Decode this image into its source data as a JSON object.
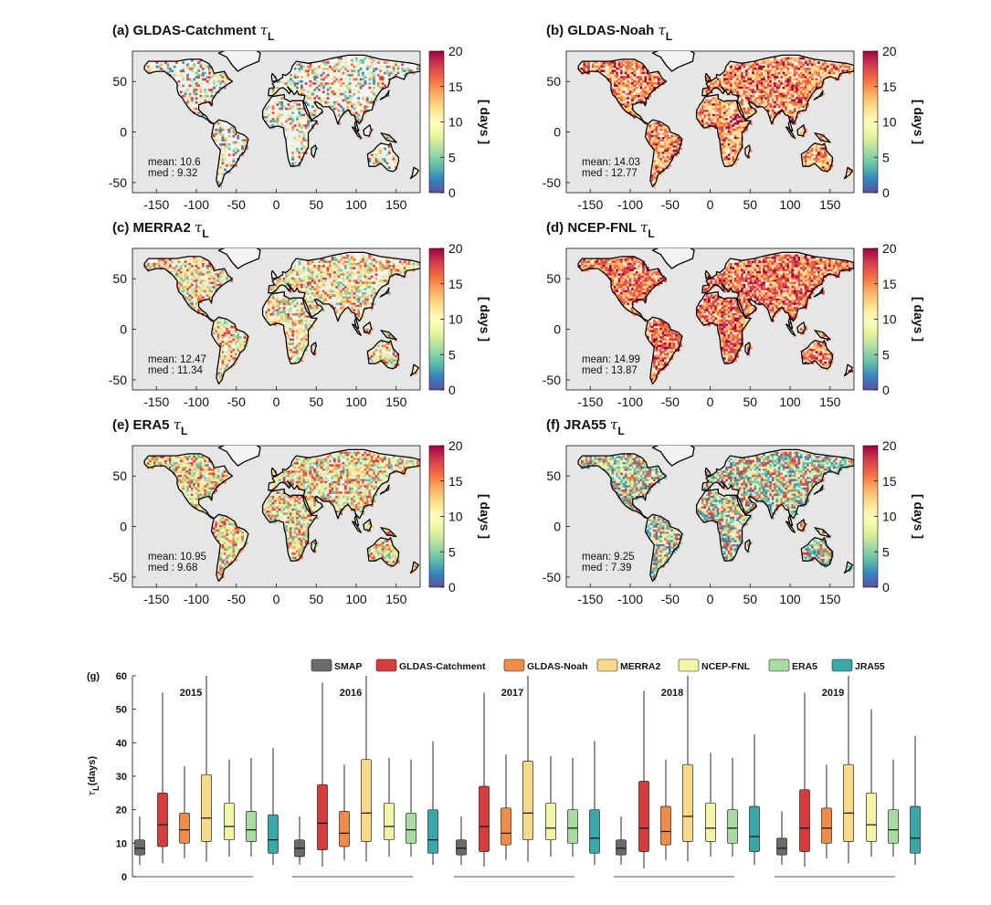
{
  "maps": [
    {
      "id": "a",
      "title": "(a) GLDAS-Catchment",
      "tau": "τ",
      "sub": "L",
      "mean": "mean:  10.6",
      "med": "med : 9.32",
      "density": 0.35,
      "palette": [
        "#3e8fb0",
        "#66c2a5",
        "#abdda4",
        "#e6f598",
        "#fee08b",
        "#fdae61",
        "#f46d43",
        "#d53e4f"
      ]
    },
    {
      "id": "b",
      "title": "(b) GLDAS-Noah",
      "tau": "τ",
      "sub": "L",
      "mean": "mean:  14.03",
      "med": "med : 12.77",
      "density": 0.8,
      "palette": [
        "#fee08b",
        "#fdae61",
        "#f46d43",
        "#d53e4f",
        "#9e0142",
        "#f46d43",
        "#fdae61",
        "#fee08b"
      ]
    },
    {
      "id": "c",
      "title": "(c) MERRA2",
      "tau": "τ",
      "sub": "L",
      "mean": "mean:  12.47",
      "med": "med : 11.34",
      "density": 0.6,
      "palette": [
        "#abdda4",
        "#e6f598",
        "#fee08b",
        "#fdae61",
        "#f46d43",
        "#d53e4f",
        "#66c2a5",
        "#fee08b"
      ]
    },
    {
      "id": "d",
      "title": "(d) NCEP-FNL",
      "tau": "τ",
      "sub": "L",
      "mean": "mean:  14.99",
      "med": "med : 13.87",
      "density": 0.85,
      "palette": [
        "#fdae61",
        "#f46d43",
        "#d53e4f",
        "#9e0142",
        "#fee08b",
        "#f46d43",
        "#d53e4f",
        "#fdae61"
      ]
    },
    {
      "id": "e",
      "title": "(e) ERA5",
      "tau": "τ",
      "sub": "L",
      "mean": "mean:  10.95",
      "med": "med : 9.68",
      "density": 0.75,
      "palette": [
        "#abdda4",
        "#e6f598",
        "#fee08b",
        "#fdae61",
        "#66c2a5",
        "#d53e4f",
        "#f46d43",
        "#e6f598"
      ]
    },
    {
      "id": "f",
      "title": "(f) JRA55",
      "tau": "τ",
      "sub": "L",
      "mean": "mean:  9.25",
      "med": "med : 7.39",
      "density": 0.8,
      "palette": [
        "#66c2a5",
        "#3288bd",
        "#abdda4",
        "#e6f598",
        "#fee08b",
        "#f46d43",
        "#d53e4f",
        "#66c2a5"
      ]
    }
  ],
  "map_axes": {
    "x_ticks": [
      "-150",
      "-100",
      "-50",
      "0",
      "50",
      "100",
      "150"
    ],
    "y_ticks": [
      "50",
      "0",
      "-50"
    ],
    "colorbar_ticks": [
      "20",
      "15",
      "10",
      "5",
      "0"
    ],
    "colorbar_label": "[ days ]",
    "colorbar_range": [
      0,
      20
    ]
  },
  "colors": {
    "ocean": "#e6e6e6",
    "colorbar": [
      "#9e0142",
      "#d53e4f",
      "#f46d43",
      "#fdae61",
      "#fee08b",
      "#ffffbf",
      "#e6f598",
      "#abdda4",
      "#66c2a5",
      "#3288bd",
      "#5e4fa2"
    ]
  },
  "chart_data": {
    "type": "box",
    "panel_label": "(g)",
    "ylabel": "τ",
    "ylabel_sub": "L",
    "ylabel_unit": "(days)",
    "ylim": [
      0,
      60
    ],
    "y_ticks": [
      "60",
      "50",
      "40",
      "30",
      "20",
      "10",
      "0"
    ],
    "legend": [
      {
        "name": "SMAP",
        "color": "#6b6b6b"
      },
      {
        "name": "GLDAS-Catchment",
        "color": "#d73c3c"
      },
      {
        "name": "GLDAS-Noah",
        "color": "#f08c4a"
      },
      {
        "name": "MERRA2",
        "color": "#fad98a"
      },
      {
        "name": "NCEP-FNL",
        "color": "#f2f5a6"
      },
      {
        "name": "ERA5",
        "color": "#a8dba0"
      },
      {
        "name": "JRA55",
        "color": "#3aa8a8"
      }
    ],
    "groups": [
      {
        "year": "2015",
        "boxes": [
          {
            "min": 3.5,
            "q1": 6.5,
            "med": 8.5,
            "q3": 11,
            "max": 18
          },
          {
            "min": 4,
            "q1": 9,
            "med": 15.5,
            "q3": 25,
            "max": 55
          },
          {
            "min": 5.5,
            "q1": 10,
            "med": 14,
            "q3": 19,
            "max": 33
          },
          {
            "min": 4.5,
            "q1": 10.5,
            "med": 17.5,
            "q3": 30.5,
            "max": 60
          },
          {
            "min": 6,
            "q1": 11,
            "med": 15,
            "q3": 22,
            "max": 35
          },
          {
            "min": 6,
            "q1": 10.5,
            "med": 14,
            "q3": 19.5,
            "max": 35.5
          },
          {
            "min": 3.5,
            "q1": 7,
            "med": 11,
            "q3": 18.5,
            "max": 38.5
          }
        ]
      },
      {
        "year": "2016",
        "boxes": [
          {
            "min": 3.5,
            "q1": 6,
            "med": 8.5,
            "q3": 11,
            "max": 18
          },
          {
            "min": 3,
            "q1": 8,
            "med": 16,
            "q3": 27.5,
            "max": 58
          },
          {
            "min": 5,
            "q1": 9,
            "med": 13,
            "q3": 19.5,
            "max": 33.5
          },
          {
            "min": 4.5,
            "q1": 10.5,
            "med": 19,
            "q3": 35,
            "max": 60
          },
          {
            "min": 6,
            "q1": 11,
            "med": 15,
            "q3": 22,
            "max": 35.5
          },
          {
            "min": 6,
            "q1": 10,
            "med": 14,
            "q3": 19,
            "max": 35
          },
          {
            "min": 3.5,
            "q1": 7,
            "med": 11,
            "q3": 20,
            "max": 40.5
          }
        ]
      },
      {
        "year": "2017",
        "boxes": [
          {
            "min": 3.5,
            "q1": 6.5,
            "med": 8.5,
            "q3": 11,
            "max": 18
          },
          {
            "min": 3,
            "q1": 7.5,
            "med": 15,
            "q3": 27,
            "max": 55
          },
          {
            "min": 5,
            "q1": 9.5,
            "med": 13,
            "q3": 20.5,
            "max": 36.5
          },
          {
            "min": 4.5,
            "q1": 11,
            "med": 19,
            "q3": 34.5,
            "max": 60
          },
          {
            "min": 6,
            "q1": 11,
            "med": 14.5,
            "q3": 22,
            "max": 36
          },
          {
            "min": 6,
            "q1": 10,
            "med": 14.5,
            "q3": 20,
            "max": 35.5
          },
          {
            "min": 3.5,
            "q1": 7,
            "med": 11.5,
            "q3": 20,
            "max": 40.5
          }
        ]
      },
      {
        "year": "2018",
        "boxes": [
          {
            "min": 3.5,
            "q1": 6.5,
            "med": 8.5,
            "q3": 11,
            "max": 18
          },
          {
            "min": 2.5,
            "q1": 7.5,
            "med": 14.5,
            "q3": 28.5,
            "max": 55.5
          },
          {
            "min": 5,
            "q1": 9.5,
            "med": 13.5,
            "q3": 21,
            "max": 35
          },
          {
            "min": 4.5,
            "q1": 10.5,
            "med": 18,
            "q3": 33.5,
            "max": 60
          },
          {
            "min": 6,
            "q1": 10.5,
            "med": 14.5,
            "q3": 22,
            "max": 37
          },
          {
            "min": 6,
            "q1": 10,
            "med": 14.5,
            "q3": 20,
            "max": 35.5
          },
          {
            "min": 3.5,
            "q1": 7.5,
            "med": 12,
            "q3": 21,
            "max": 42.5
          }
        ]
      },
      {
        "year": "2019",
        "boxes": [
          {
            "min": 3.5,
            "q1": 6.5,
            "med": 8.5,
            "q3": 11.5,
            "max": 19.5
          },
          {
            "min": 3,
            "q1": 7.5,
            "med": 14.5,
            "q3": 26,
            "max": 55
          },
          {
            "min": 5.5,
            "q1": 10,
            "med": 14.5,
            "q3": 20.5,
            "max": 33.5
          },
          {
            "min": 4,
            "q1": 10.5,
            "med": 19,
            "q3": 33.5,
            "max": 60
          },
          {
            "min": 6,
            "q1": 10.5,
            "med": 15.5,
            "q3": 25,
            "max": 50
          },
          {
            "min": 6,
            "q1": 10,
            "med": 14,
            "q3": 20,
            "max": 35
          },
          {
            "min": 3.5,
            "q1": 7,
            "med": 11.5,
            "q3": 21,
            "max": 42
          }
        ]
      }
    ]
  }
}
